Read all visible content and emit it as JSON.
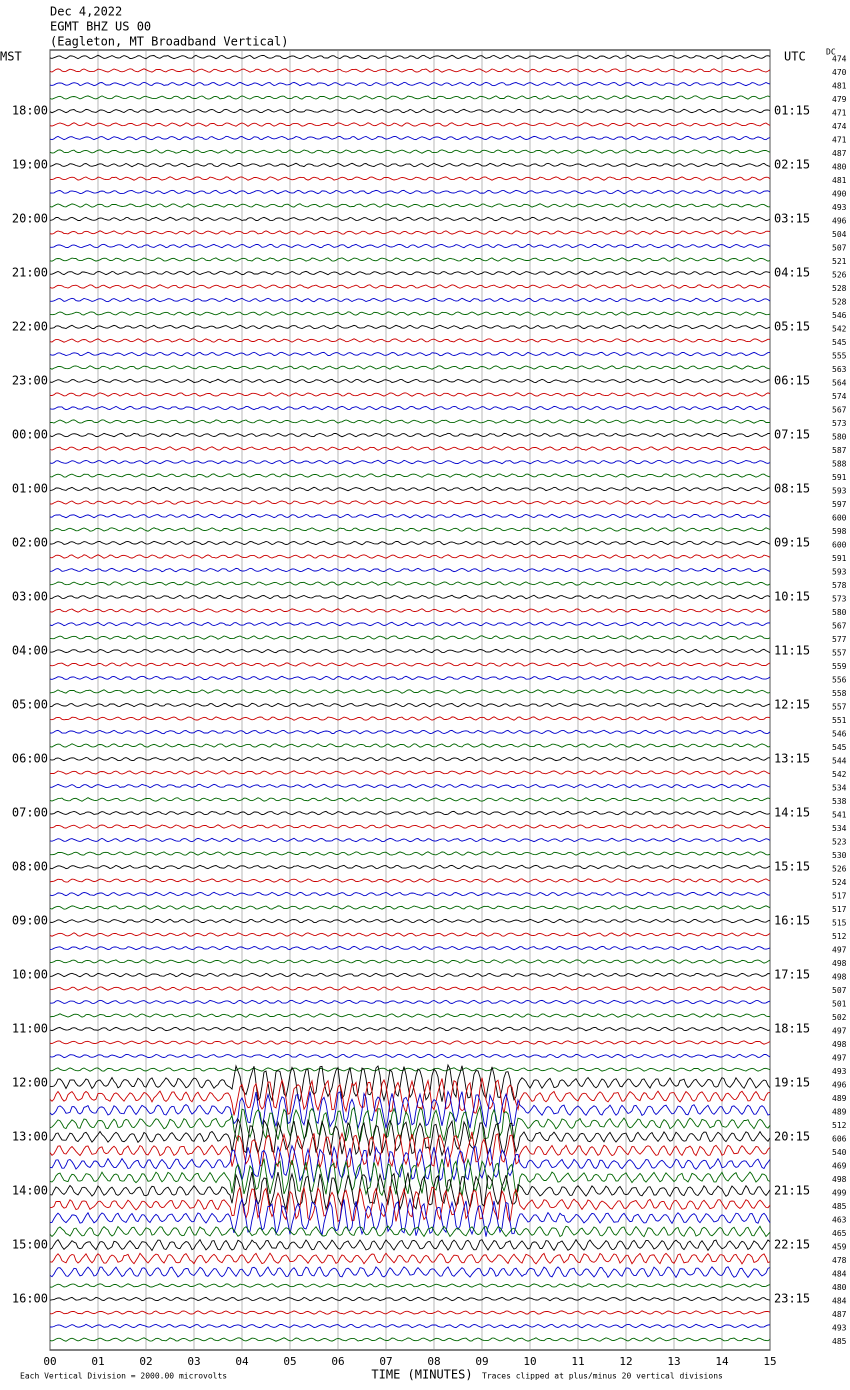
{
  "header": {
    "date": "Dec 4,2022",
    "station": "EGMT BHZ US 00",
    "location": "(Eagleton, MT Broadband Vertical)"
  },
  "left_axis_title": "MST",
  "right_axis_title": "UTC",
  "dc_title": "DC",
  "trace_colors": [
    "#000000",
    "#cc0000",
    "#0000cc",
    "#006600"
  ],
  "mst_labels": [
    null,
    null,
    null,
    null,
    "18:00",
    null,
    null,
    null,
    "19:00",
    null,
    null,
    null,
    "20:00",
    null,
    null,
    null,
    "21:00",
    null,
    null,
    null,
    "22:00",
    null,
    null,
    null,
    "23:00",
    null,
    null,
    null,
    "00:00",
    null,
    null,
    null,
    "01:00",
    null,
    null,
    null,
    "02:00",
    null,
    null,
    null,
    "03:00",
    null,
    null,
    null,
    "04:00",
    null,
    null,
    null,
    "05:00",
    null,
    null,
    null,
    "06:00",
    null,
    null,
    null,
    "07:00",
    null,
    null,
    null,
    "08:00",
    null,
    null,
    null,
    "09:00",
    null,
    null,
    null,
    "10:00",
    null,
    null,
    null,
    "11:00",
    null,
    null,
    null,
    "12:00",
    null,
    null,
    null,
    "13:00",
    null,
    null,
    null,
    "14:00",
    null,
    null,
    null,
    "15:00",
    null,
    null,
    null,
    "16:00",
    null,
    null,
    null
  ],
  "utc_labels": [
    null,
    null,
    null,
    null,
    "01:15",
    null,
    null,
    null,
    "02:15",
    null,
    null,
    null,
    "03:15",
    null,
    null,
    null,
    "04:15",
    null,
    null,
    null,
    "05:15",
    null,
    null,
    null,
    "06:15",
    null,
    null,
    null,
    "07:15",
    null,
    null,
    null,
    "08:15",
    null,
    null,
    null,
    "09:15",
    null,
    null,
    null,
    "10:15",
    null,
    null,
    null,
    "11:15",
    null,
    null,
    null,
    "12:15",
    null,
    null,
    null,
    "13:15",
    null,
    null,
    null,
    "14:15",
    null,
    null,
    null,
    "15:15",
    null,
    null,
    null,
    "16:15",
    null,
    null,
    null,
    "17:15",
    null,
    null,
    null,
    "18:15",
    null,
    null,
    null,
    "19:15",
    null,
    null,
    null,
    "20:15",
    null,
    null,
    null,
    "21:15",
    null,
    null,
    null,
    "22:15",
    null,
    null,
    null,
    "23:15",
    null,
    null,
    null
  ],
  "dc_values": [
    474,
    470,
    481,
    479,
    471,
    474,
    471,
    487,
    480,
    481,
    490,
    493,
    496,
    504,
    507,
    521,
    526,
    528,
    528,
    546,
    542,
    545,
    555,
    563,
    564,
    574,
    567,
    573,
    580,
    587,
    588,
    591,
    593,
    597,
    600,
    598,
    600,
    591,
    593,
    578,
    573,
    580,
    567,
    577,
    557,
    559,
    556,
    558,
    557,
    551,
    546,
    545,
    544,
    542,
    534,
    538,
    541,
    534,
    523,
    530,
    526,
    524,
    517,
    517,
    515,
    512,
    497,
    498,
    498,
    507,
    501,
    502,
    497,
    498,
    497,
    493,
    496,
    489,
    489,
    512,
    606,
    540,
    469,
    498,
    499,
    485,
    463,
    465,
    459,
    478,
    484,
    480,
    484,
    487,
    493,
    485
  ],
  "x_tick_labels": [
    "00",
    "01",
    "02",
    "03",
    "04",
    "05",
    "06",
    "07",
    "08",
    "09",
    "10",
    "11",
    "12",
    "13",
    "14",
    "15"
  ],
  "x_axis_label": "TIME (MINUTES)",
  "footer_left": "Each Vertical Division = 2000.00 microvolts",
  "footer_right": "Traces clipped at plus/minus 20 vertical divisions"
}
